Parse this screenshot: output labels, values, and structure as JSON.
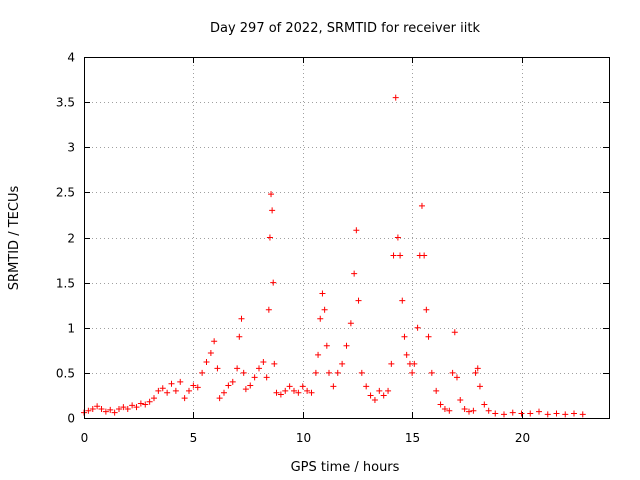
{
  "chart_data": {
    "type": "scatter",
    "title": "Day 297 of 2022, SRMTID for receiver iitk",
    "xlabel": "GPS time / hours",
    "ylabel": "SRMTID / TECUs",
    "xlim": [
      0,
      24
    ],
    "ylim": [
      0,
      4
    ],
    "xticks": [
      0,
      5,
      10,
      15,
      20
    ],
    "xtick_labels": [
      "0",
      "5",
      "10",
      "15",
      "20"
    ],
    "yticks": [
      0,
      0.5,
      1,
      1.5,
      2,
      2.5,
      3,
      3.5,
      4
    ],
    "ytick_labels": [
      "0",
      "0.5",
      "1",
      "1.5",
      "2",
      "2.5",
      "3",
      "3.5",
      "4"
    ],
    "grid": true,
    "marker": "+",
    "series": [
      {
        "name": "SRMTID",
        "color": "#ff0000",
        "points": [
          [
            0.0,
            0.06
          ],
          [
            0.2,
            0.08
          ],
          [
            0.4,
            0.1
          ],
          [
            0.6,
            0.13
          ],
          [
            0.8,
            0.1
          ],
          [
            1.0,
            0.07
          ],
          [
            1.2,
            0.09
          ],
          [
            1.4,
            0.06
          ],
          [
            1.6,
            0.1
          ],
          [
            1.8,
            0.12
          ],
          [
            2.0,
            0.1
          ],
          [
            2.2,
            0.14
          ],
          [
            2.4,
            0.12
          ],
          [
            2.6,
            0.16
          ],
          [
            2.8,
            0.15
          ],
          [
            3.0,
            0.18
          ],
          [
            3.2,
            0.22
          ],
          [
            3.4,
            0.3
          ],
          [
            3.6,
            0.33
          ],
          [
            3.8,
            0.28
          ],
          [
            4.0,
            0.38
          ],
          [
            4.2,
            0.3
          ],
          [
            4.4,
            0.4
          ],
          [
            4.6,
            0.22
          ],
          [
            4.8,
            0.3
          ],
          [
            5.0,
            0.36
          ],
          [
            5.2,
            0.34
          ],
          [
            5.4,
            0.5
          ],
          [
            5.6,
            0.62
          ],
          [
            5.8,
            0.72
          ],
          [
            5.95,
            0.85
          ],
          [
            6.1,
            0.55
          ],
          [
            6.2,
            0.22
          ],
          [
            6.4,
            0.28
          ],
          [
            6.6,
            0.36
          ],
          [
            6.8,
            0.4
          ],
          [
            7.0,
            0.55
          ],
          [
            7.1,
            0.9
          ],
          [
            7.2,
            1.1
          ],
          [
            7.3,
            0.5
          ],
          [
            7.4,
            0.32
          ],
          [
            7.6,
            0.36
          ],
          [
            7.8,
            0.45
          ],
          [
            8.0,
            0.55
          ],
          [
            8.2,
            0.62
          ],
          [
            8.35,
            0.45
          ],
          [
            8.45,
            1.2
          ],
          [
            8.5,
            2.0
          ],
          [
            8.55,
            2.48
          ],
          [
            8.6,
            2.3
          ],
          [
            8.65,
            1.5
          ],
          [
            8.7,
            0.6
          ],
          [
            8.8,
            0.28
          ],
          [
            9.0,
            0.26
          ],
          [
            9.2,
            0.3
          ],
          [
            9.4,
            0.35
          ],
          [
            9.6,
            0.3
          ],
          [
            9.8,
            0.28
          ],
          [
            10.0,
            0.35
          ],
          [
            10.2,
            0.3
          ],
          [
            10.4,
            0.28
          ],
          [
            10.6,
            0.5
          ],
          [
            10.7,
            0.7
          ],
          [
            10.8,
            1.1
          ],
          [
            10.9,
            1.38
          ],
          [
            11.0,
            1.2
          ],
          [
            11.1,
            0.8
          ],
          [
            11.2,
            0.5
          ],
          [
            11.4,
            0.35
          ],
          [
            11.6,
            0.5
          ],
          [
            11.8,
            0.6
          ],
          [
            12.0,
            0.8
          ],
          [
            12.2,
            1.05
          ],
          [
            12.35,
            1.6
          ],
          [
            12.45,
            2.08
          ],
          [
            12.55,
            1.3
          ],
          [
            12.7,
            0.5
          ],
          [
            12.9,
            0.35
          ],
          [
            13.1,
            0.25
          ],
          [
            13.3,
            0.2
          ],
          [
            13.5,
            0.3
          ],
          [
            13.7,
            0.25
          ],
          [
            13.9,
            0.3
          ],
          [
            14.05,
            0.6
          ],
          [
            14.15,
            1.8
          ],
          [
            14.25,
            3.55
          ],
          [
            14.35,
            2.0
          ],
          [
            14.45,
            1.8
          ],
          [
            14.55,
            1.3
          ],
          [
            14.65,
            0.9
          ],
          [
            14.75,
            0.7
          ],
          [
            14.9,
            0.6
          ],
          [
            15.0,
            0.5
          ],
          [
            15.1,
            0.6
          ],
          [
            15.25,
            1.0
          ],
          [
            15.35,
            1.8
          ],
          [
            15.45,
            2.35
          ],
          [
            15.55,
            1.8
          ],
          [
            15.65,
            1.2
          ],
          [
            15.75,
            0.9
          ],
          [
            15.9,
            0.5
          ],
          [
            16.1,
            0.3
          ],
          [
            16.3,
            0.15
          ],
          [
            16.5,
            0.1
          ],
          [
            16.7,
            0.08
          ],
          [
            16.85,
            0.5
          ],
          [
            16.95,
            0.95
          ],
          [
            17.05,
            0.45
          ],
          [
            17.2,
            0.2
          ],
          [
            17.4,
            0.1
          ],
          [
            17.6,
            0.07
          ],
          [
            17.8,
            0.08
          ],
          [
            17.9,
            0.5
          ],
          [
            18.0,
            0.55
          ],
          [
            18.1,
            0.35
          ],
          [
            18.3,
            0.15
          ],
          [
            18.5,
            0.08
          ],
          [
            18.8,
            0.05
          ],
          [
            19.2,
            0.04
          ],
          [
            19.6,
            0.06
          ],
          [
            20.0,
            0.05
          ],
          [
            20.4,
            0.05
          ],
          [
            20.8,
            0.07
          ],
          [
            21.2,
            0.04
          ],
          [
            21.6,
            0.05
          ],
          [
            22.0,
            0.04
          ],
          [
            22.4,
            0.05
          ],
          [
            22.8,
            0.04
          ]
        ]
      }
    ]
  }
}
